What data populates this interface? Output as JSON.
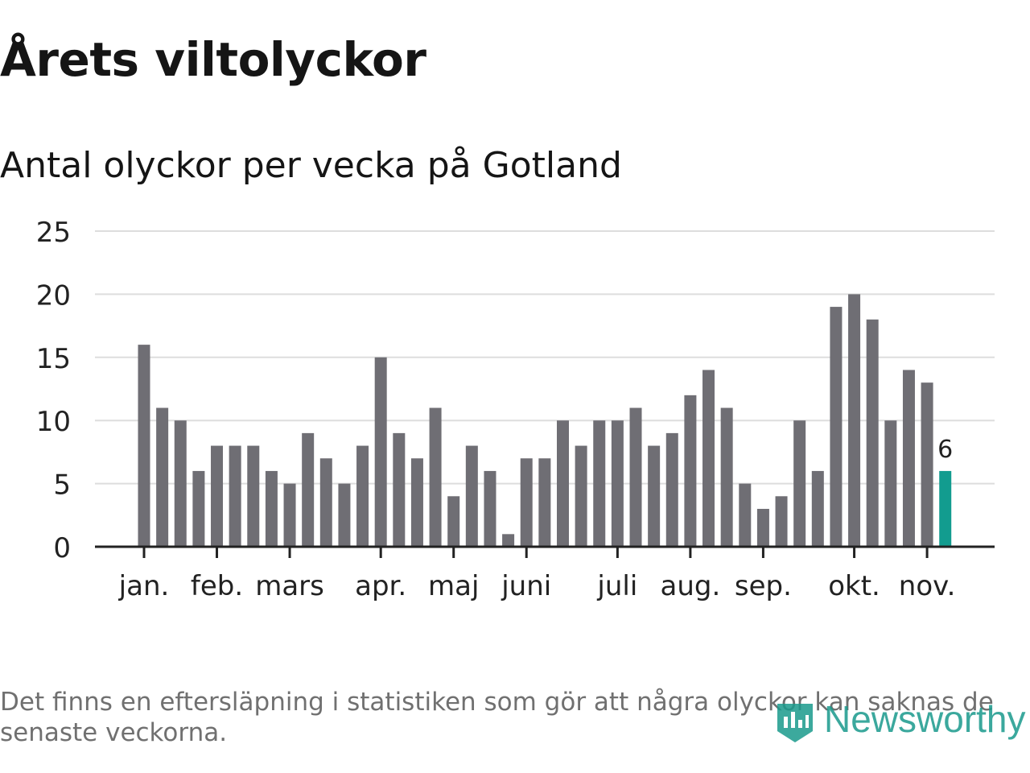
{
  "title": "Årets viltolyckor",
  "subtitle": "Antal olyckor per vecka på Gotland",
  "footnote": "Det finns en eftersläpning i statistiken som gör att några olyckor kan saknas de senaste veckorna.",
  "brand": {
    "name": "Newsworthy",
    "logo_icon": "newsworthy-bar-icon"
  },
  "colors": {
    "bar": "#6f6e74",
    "highlight": "#129c8f",
    "grid": "#dddddd",
    "axis": "#222222",
    "brand": "#1a9a8c"
  },
  "chart_data": {
    "type": "bar",
    "title": "Antal olyckor per vecka på Gotland",
    "xlabel": "",
    "ylabel": "",
    "ylim": [
      0,
      25
    ],
    "yticks": [
      0,
      5,
      10,
      15,
      20,
      25
    ],
    "grid": true,
    "values": [
      16,
      11,
      10,
      6,
      8,
      8,
      8,
      6,
      5,
      9,
      7,
      5,
      8,
      15,
      9,
      7,
      11,
      4,
      8,
      6,
      1,
      7,
      7,
      10,
      8,
      10,
      10,
      11,
      8,
      9,
      12,
      14,
      11,
      5,
      3,
      4,
      10,
      6,
      19,
      20,
      18,
      10,
      14,
      13,
      6
    ],
    "highlight_index": 44,
    "highlight_label": "6",
    "month_labels": [
      {
        "label": "jan.",
        "week_index": 0
      },
      {
        "label": "feb.",
        "week_index": 4
      },
      {
        "label": "mars",
        "week_index": 8
      },
      {
        "label": "apr.",
        "week_index": 13
      },
      {
        "label": "maj",
        "week_index": 17
      },
      {
        "label": "juni",
        "week_index": 21
      },
      {
        "label": "juli",
        "week_index": 26
      },
      {
        "label": "aug.",
        "week_index": 30
      },
      {
        "label": "sep.",
        "week_index": 34
      },
      {
        "label": "okt.",
        "week_index": 39
      },
      {
        "label": "nov.",
        "week_index": 43
      }
    ]
  }
}
